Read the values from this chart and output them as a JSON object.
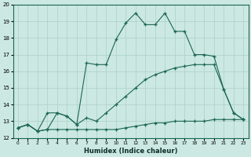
{
  "xlabel": "Humidex (Indice chaleur)",
  "background_color": "#cce8e2",
  "grid_color": "#aad0c8",
  "line_color": "#1a6655",
  "hours": [
    0,
    1,
    2,
    3,
    4,
    5,
    6,
    7,
    8,
    9,
    10,
    11,
    12,
    13,
    14,
    15,
    16,
    17,
    18,
    19,
    20,
    21,
    22,
    23
  ],
  "line_flat": [
    12.6,
    12.8,
    12.4,
    12.5,
    12.5,
    12.5,
    12.5,
    12.5,
    12.5,
    12.5,
    12.5,
    12.6,
    12.7,
    12.8,
    12.9,
    12.9,
    13.0,
    13.0,
    13.0,
    13.0,
    13.1,
    13.1,
    13.1,
    13.1
  ],
  "line_diag": [
    12.6,
    12.8,
    12.4,
    12.5,
    13.5,
    13.3,
    12.8,
    13.2,
    13.0,
    13.5,
    14.0,
    14.5,
    15.0,
    15.5,
    15.8,
    16.0,
    16.2,
    16.3,
    16.4,
    16.4,
    16.4,
    14.9,
    13.5,
    13.1
  ],
  "line_jagged": [
    12.6,
    12.8,
    12.4,
    13.5,
    13.5,
    13.3,
    12.8,
    16.5,
    16.4,
    16.4,
    17.9,
    18.9,
    19.5,
    18.8,
    18.8,
    19.5,
    18.4,
    18.4,
    17.0,
    17.0,
    16.9,
    14.9,
    13.5,
    13.1
  ],
  "ylim": [
    12,
    20
  ],
  "xlim_min": -0.5,
  "xlim_max": 23.5,
  "yticks": [
    12,
    13,
    14,
    15,
    16,
    17,
    18,
    19,
    20
  ],
  "xticks": [
    0,
    1,
    2,
    3,
    4,
    5,
    6,
    7,
    8,
    9,
    10,
    11,
    12,
    13,
    14,
    15,
    16,
    17,
    18,
    19,
    20,
    21,
    22,
    23
  ]
}
